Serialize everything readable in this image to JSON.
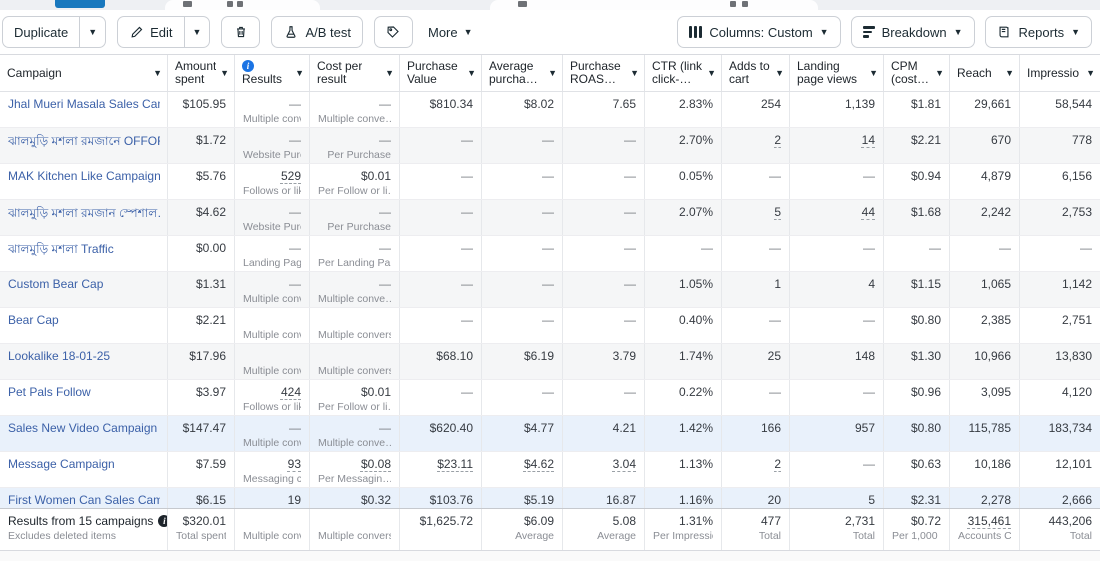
{
  "toolbar": {
    "duplicate_label": "Duplicate",
    "edit_label": "Edit",
    "ab_test_label": "A/B test",
    "more_label": "More",
    "columns_label": "Columns: Custom",
    "breakdown_label": "Breakdown",
    "reports_label": "Reports"
  },
  "accent_colors": {
    "link_blue": "#3c61a8",
    "info_blue": "#1b74e4",
    "selected_row": "#e9f1fb",
    "tab_blue": "#1878be"
  },
  "table": {
    "columns": [
      {
        "key": "campaign",
        "label": "Campaign"
      },
      {
        "key": "amount-spent",
        "label": "Amount\nspent"
      },
      {
        "key": "results",
        "label": "Results",
        "info": true
      },
      {
        "key": "cost-per-result",
        "label": "Cost per\nresult"
      },
      {
        "key": "purchase-value",
        "label": "Purchase\nValue"
      },
      {
        "key": "average-purchase",
        "label": "Average\npurcha…"
      },
      {
        "key": "purchase-roas",
        "label": "Purchase\nROAS…"
      },
      {
        "key": "ctr-link-click",
        "label": "CTR (link\nclick-…"
      },
      {
        "key": "adds-to-cart",
        "label": "Adds to\ncart"
      },
      {
        "key": "landing-page-views",
        "label": "Landing\npage views"
      },
      {
        "key": "cpm-cost",
        "label": "CPM\n(cost…"
      },
      {
        "key": "reach",
        "label": "Reach"
      },
      {
        "key": "impressions",
        "label": "Impressio"
      }
    ],
    "rows": [
      {
        "name": "Jhal Mueri Masala Sales Camp…",
        "bg": "w",
        "cells": [
          [
            "$105.95"
          ],
          [
            "—",
            "Multiple conv…"
          ],
          [
            "—",
            "Multiple conve…"
          ],
          [
            "$810.34"
          ],
          [
            "$8.02"
          ],
          [
            "7.65"
          ],
          [
            "2.83%"
          ],
          [
            "254"
          ],
          [
            "1,139"
          ],
          [
            "$1.81"
          ],
          [
            "29,661"
          ],
          [
            "58,544"
          ]
        ]
      },
      {
        "name": "ঝালমুড়ি মশলা রমজানে OFFOR",
        "bg": "g",
        "cells": [
          [
            "$1.72"
          ],
          [
            "—",
            "Website Purc…"
          ],
          [
            "—",
            "Per Purchase"
          ],
          [
            "—"
          ],
          [
            "—"
          ],
          [
            "—"
          ],
          [
            "2.70%"
          ],
          [
            "2",
            "",
            1
          ],
          [
            "14",
            "",
            1
          ],
          [
            "$2.21"
          ],
          [
            "670"
          ],
          [
            "778"
          ]
        ]
      },
      {
        "name": "MAK Kitchen Like Campaign a",
        "bg": "w",
        "cells": [
          [
            "$5.76"
          ],
          [
            "529",
            "Follows or likes",
            1
          ],
          [
            "$0.01",
            "Per Follow or li…"
          ],
          [
            "—"
          ],
          [
            "—"
          ],
          [
            "—"
          ],
          [
            "0.05%"
          ],
          [
            "—"
          ],
          [
            "—"
          ],
          [
            "$0.94"
          ],
          [
            "4,879"
          ],
          [
            "6,156"
          ]
        ]
      },
      {
        "name": "ঝালমুড়ি মশলা রমজান স্পেশাল…",
        "bg": "g",
        "cells": [
          [
            "$4.62"
          ],
          [
            "—",
            "Website Purc…"
          ],
          [
            "—",
            "Per Purchase"
          ],
          [
            "—"
          ],
          [
            "—"
          ],
          [
            "—"
          ],
          [
            "2.07%"
          ],
          [
            "5",
            "",
            1
          ],
          [
            "44",
            "",
            1
          ],
          [
            "$1.68"
          ],
          [
            "2,242"
          ],
          [
            "2,753"
          ]
        ]
      },
      {
        "name": "ঝালমুড়ি মশলা Traffic",
        "bg": "w",
        "cells": [
          [
            "$0.00"
          ],
          [
            "—",
            "Landing Page…"
          ],
          [
            "—",
            "Per Landing Pa…"
          ],
          [
            "—"
          ],
          [
            "—"
          ],
          [
            "—"
          ],
          [
            "—"
          ],
          [
            "—"
          ],
          [
            "—"
          ],
          [
            "—"
          ],
          [
            "—"
          ],
          [
            "—"
          ]
        ]
      },
      {
        "name": "Custom Bear Cap",
        "bg": "g",
        "cells": [
          [
            "$1.31"
          ],
          [
            "—",
            "Multiple conv…"
          ],
          [
            "—",
            "Multiple conve…"
          ],
          [
            "—"
          ],
          [
            "—"
          ],
          [
            "—"
          ],
          [
            "1.05%"
          ],
          [
            "1"
          ],
          [
            "4"
          ],
          [
            "$1.15"
          ],
          [
            "1,065"
          ],
          [
            "1,142"
          ]
        ]
      },
      {
        "name": "Bear Cap",
        "bg": "w",
        "cells": [
          [
            "$2.21"
          ],
          [
            "",
            "Multiple conver"
          ],
          [
            "",
            "Multiple conversi"
          ],
          [
            "—"
          ],
          [
            "—"
          ],
          [
            "—"
          ],
          [
            "0.40%"
          ],
          [
            "—"
          ],
          [
            "—"
          ],
          [
            "$0.80"
          ],
          [
            "2,385"
          ],
          [
            "2,751"
          ]
        ]
      },
      {
        "name": "Lookalike 18-01-25",
        "bg": "g",
        "cells": [
          [
            "$17.96"
          ],
          [
            "",
            "Multiple conver"
          ],
          [
            "",
            "Multiple conversi"
          ],
          [
            "$68.10"
          ],
          [
            "$6.19"
          ],
          [
            "3.79"
          ],
          [
            "1.74%"
          ],
          [
            "25"
          ],
          [
            "148"
          ],
          [
            "$1.30"
          ],
          [
            "10,966"
          ],
          [
            "13,830"
          ]
        ]
      },
      {
        "name": "Pet Pals Follow",
        "bg": "w",
        "cells": [
          [
            "$3.97"
          ],
          [
            "424",
            "Follows or likes",
            1
          ],
          [
            "$0.01",
            "Per Follow or li…"
          ],
          [
            "—"
          ],
          [
            "—"
          ],
          [
            "—"
          ],
          [
            "0.22%"
          ],
          [
            "—"
          ],
          [
            "—"
          ],
          [
            "$0.96"
          ],
          [
            "3,095"
          ],
          [
            "4,120"
          ]
        ]
      },
      {
        "name": "Sales New Video Campaign",
        "bg": "b",
        "cells": [
          [
            "$147.47"
          ],
          [
            "—",
            "Multiple conv…"
          ],
          [
            "—",
            "Multiple conve…"
          ],
          [
            "$620.40"
          ],
          [
            "$4.77"
          ],
          [
            "4.21"
          ],
          [
            "1.42%"
          ],
          [
            "166"
          ],
          [
            "957"
          ],
          [
            "$0.80"
          ],
          [
            "115,785"
          ],
          [
            "183,734"
          ]
        ]
      },
      {
        "name": "Message Campaign",
        "bg": "w",
        "cells": [
          [
            "$7.59"
          ],
          [
            "93",
            "Messaging c…",
            1
          ],
          [
            "$0.08",
            "Per Messagin…",
            1
          ],
          [
            "$23.11",
            "",
            1
          ],
          [
            "$4.62",
            "",
            1
          ],
          [
            "3.04",
            "",
            1
          ],
          [
            "1.13%"
          ],
          [
            "2",
            "",
            1
          ],
          [
            "—"
          ],
          [
            "$0.63"
          ],
          [
            "10,186"
          ],
          [
            "12,101"
          ]
        ]
      },
      {
        "name": "First Women Can Sales Campa",
        "bg": "b",
        "cut": true,
        "cells": [
          [
            "$6.15"
          ],
          [
            "19"
          ],
          [
            "$0.32"
          ],
          [
            "$103.76"
          ],
          [
            "$5.19"
          ],
          [
            "16.87"
          ],
          [
            "1.16%"
          ],
          [
            "20"
          ],
          [
            "5"
          ],
          [
            "$2.31"
          ],
          [
            "2,278"
          ],
          [
            "2,666"
          ]
        ]
      }
    ],
    "footer": {
      "title": "Results from 15 campaigns",
      "subtitle": "Excludes deleted items",
      "cells": [
        [
          "$320.01",
          "Total spent"
        ],
        [
          "",
          "Multiple conver"
        ],
        [
          "",
          "Multiple convers"
        ],
        [
          "$1,625.72",
          ""
        ],
        [
          "$6.09",
          "Average"
        ],
        [
          "5.08",
          "Average"
        ],
        [
          "1.31%",
          "Per Impressio…"
        ],
        [
          "477",
          "Total"
        ],
        [
          "2,731",
          "Total"
        ],
        [
          "$0.72",
          "Per 1,000 I…"
        ],
        [
          "315,461",
          "Accounts C…",
          1
        ],
        [
          "443,206",
          "Total"
        ]
      ]
    }
  }
}
